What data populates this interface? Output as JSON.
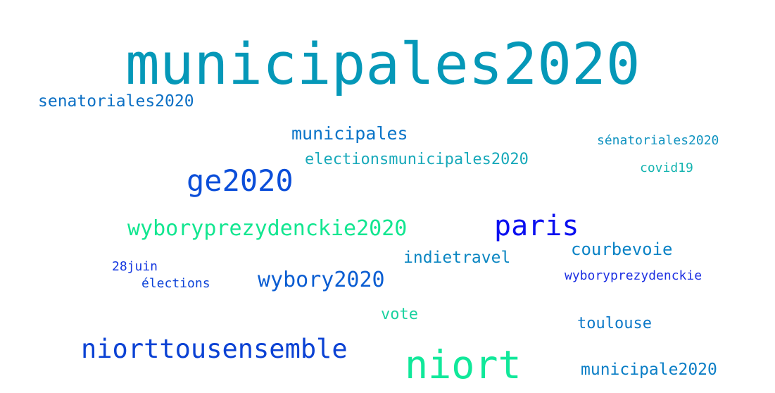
{
  "words": {
    "municipales2020": {
      "text": "municipales2020",
      "color": "#0598b8"
    },
    "senatoriales2020": {
      "text": "senatoriales2020",
      "color": "#0b6fc4"
    },
    "municipales": {
      "text": "municipales",
      "color": "#0a74c8"
    },
    "sénatoriales2020": {
      "text": "sénatoriales2020",
      "color": "#1193c0"
    },
    "electionsmunicipales2020": {
      "text": "electionsmunicipales2020",
      "color": "#18a9ba"
    },
    "ge2020": {
      "text": "ge2020",
      "color": "#0b4ed9"
    },
    "covid19": {
      "text": "covid19",
      "color": "#15b4b0"
    },
    "wyboryprezydenckie2020": {
      "text": "wyboryprezydenckie2020",
      "color": "#12e690"
    },
    "paris": {
      "text": "paris",
      "color": "#0a0ff0"
    },
    "courbevoie": {
      "text": "courbevoie",
      "color": "#0b83c6"
    },
    "indietravel": {
      "text": "indietravel",
      "color": "#0b86c2"
    },
    "28juin": {
      "text": "28juin",
      "color": "#1437e0"
    },
    "élections": {
      "text": "élections",
      "color": "#0b42d8"
    },
    "wybory2020": {
      "text": "wybory2020",
      "color": "#0a5dd2"
    },
    "wyboryprezydenckie": {
      "text": "wyboryprezydenckie",
      "color": "#1c2fe2"
    },
    "vote": {
      "text": "vote",
      "color": "#19d2a0"
    },
    "toulouse": {
      "text": "toulouse",
      "color": "#0b78c8"
    },
    "niorttousensemble": {
      "text": "niorttousensemble",
      "color": "#0b42d4"
    },
    "niort": {
      "text": "niort",
      "color": "#10e89a"
    },
    "municipale2020": {
      "text": "municipale2020",
      "color": "#0a7ec6"
    }
  }
}
